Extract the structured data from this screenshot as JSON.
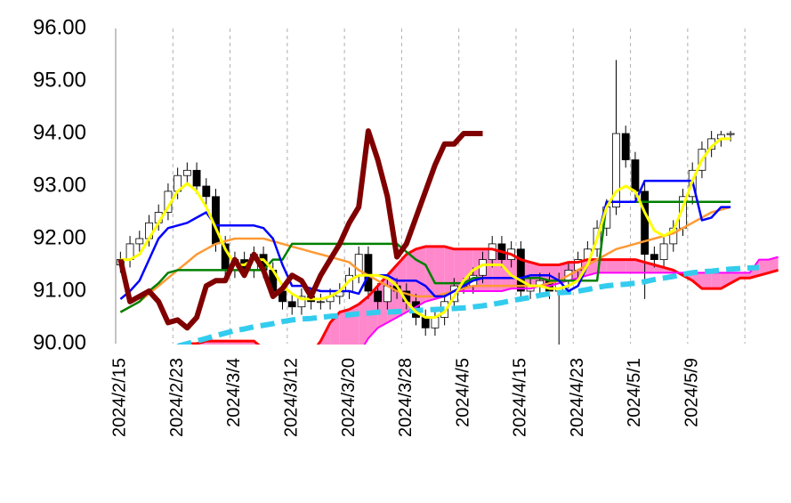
{
  "chart_data": {
    "type": "ichimoku",
    "categories": [
      "2024/2/15",
      null,
      null,
      null,
      null,
      null,
      "2024/2/23",
      null,
      null,
      null,
      null,
      null,
      "2024/3/4",
      null,
      null,
      null,
      null,
      null,
      "2024/3/12",
      null,
      null,
      null,
      null,
      null,
      "2024/3/20",
      null,
      null,
      null,
      null,
      null,
      "2024/3/28",
      null,
      null,
      null,
      null,
      null,
      "2024/4/5",
      null,
      null,
      null,
      null,
      null,
      "2024/4/15",
      null,
      null,
      null,
      null,
      null,
      "2024/4/23",
      null,
      null,
      null,
      null,
      null,
      "2024/5/1",
      null,
      null,
      null,
      null,
      null,
      "2024/5/9",
      null,
      null,
      null,
      null,
      null,
      null,
      null,
      null,
      null
    ],
    "ylim": [
      90,
      96
    ],
    "yticks": [
      {
        "value": 90,
        "label": "90.00"
      },
      {
        "value": 91,
        "label": "91.00"
      },
      {
        "value": 92,
        "label": "92.00"
      },
      {
        "value": 93,
        "label": "93.00"
      },
      {
        "value": 94,
        "label": "94.00"
      },
      {
        "value": 95,
        "label": "95.00"
      },
      {
        "value": 96,
        "label": "96.00"
      }
    ],
    "grid": true,
    "candles": {
      "up_color": "#ffffff",
      "down_color": "#000000",
      "open": [
        91.5,
        91.6,
        91.9,
        92.0,
        92.3,
        92.5,
        92.9,
        93.2,
        93.3,
        93.0,
        92.8,
        91.9,
        91.4,
        91.6,
        91.4,
        91.7,
        91.4,
        91.0,
        90.8,
        90.7,
        90.9,
        90.8,
        90.8,
        90.9,
        91.0,
        91.3,
        91.7,
        91.0,
        90.8,
        91.1,
        91.0,
        90.8,
        90.5,
        90.3,
        90.5,
        90.8,
        91.1,
        91.1,
        91.3,
        91.6,
        91.9,
        91.6,
        91.8,
        91.0,
        91.1,
        91.2,
        91.0,
        91.2,
        91.4,
        91.6,
        91.8,
        92.2,
        92.6,
        94.0,
        93.5,
        92.9,
        91.7,
        91.6,
        91.9,
        92.2,
        92.8,
        93.3,
        93.7,
        93.9,
        93.98,
        null,
        null,
        null,
        null,
        null
      ],
      "high": [
        91.75,
        92.05,
        92.15,
        92.45,
        92.65,
        93.05,
        93.35,
        93.45,
        93.45,
        93.15,
        92.95,
        92.05,
        91.75,
        91.75,
        91.85,
        91.85,
        91.55,
        91.15,
        90.95,
        91.05,
        91.05,
        90.95,
        91.05,
        91.15,
        91.45,
        91.85,
        91.85,
        91.15,
        91.25,
        91.25,
        91.15,
        90.95,
        90.65,
        90.65,
        90.95,
        91.25,
        91.25,
        91.45,
        91.75,
        92.05,
        92.05,
        91.95,
        91.95,
        91.25,
        91.35,
        91.35,
        91.35,
        91.55,
        91.75,
        91.95,
        92.35,
        92.75,
        95.4,
        94.15,
        93.65,
        93.05,
        91.85,
        92.05,
        92.35,
        92.95,
        93.45,
        93.85,
        94.05,
        94.05,
        94.05,
        null,
        null,
        null,
        null,
        null
      ],
      "low": [
        91.35,
        91.45,
        91.75,
        91.85,
        92.15,
        92.35,
        92.75,
        93.05,
        92.85,
        92.65,
        91.75,
        91.25,
        91.25,
        91.25,
        91.25,
        91.25,
        90.85,
        90.65,
        90.55,
        90.55,
        90.65,
        90.65,
        90.65,
        90.75,
        90.85,
        91.15,
        90.85,
        90.65,
        90.65,
        90.85,
        90.65,
        90.35,
        90.15,
        90.15,
        90.35,
        90.65,
        90.95,
        90.95,
        91.15,
        91.45,
        91.45,
        91.45,
        90.85,
        90.85,
        90.95,
        90.85,
        89.95,
        91.05,
        91.25,
        91.45,
        91.65,
        92.05,
        92.45,
        93.35,
        92.75,
        90.85,
        91.45,
        91.45,
        91.75,
        92.05,
        92.65,
        93.15,
        93.55,
        93.75,
        93.85,
        null,
        null,
        null,
        null,
        null
      ],
      "close": [
        91.6,
        91.9,
        92.0,
        92.3,
        92.5,
        92.9,
        93.2,
        93.3,
        93.0,
        92.8,
        91.9,
        91.4,
        91.6,
        91.4,
        91.7,
        91.4,
        91.0,
        90.8,
        90.7,
        90.9,
        90.8,
        90.8,
        90.9,
        91.0,
        91.3,
        91.7,
        91.0,
        90.8,
        91.1,
        91.0,
        90.8,
        90.5,
        90.3,
        90.5,
        90.8,
        91.1,
        91.1,
        91.3,
        91.6,
        91.9,
        91.6,
        91.8,
        91.0,
        91.1,
        91.2,
        91.0,
        91.2,
        91.4,
        91.6,
        91.8,
        92.2,
        92.6,
        94.0,
        93.5,
        92.9,
        91.7,
        91.6,
        91.9,
        92.2,
        92.8,
        93.3,
        93.7,
        93.9,
        93.98,
        94.0,
        null,
        null,
        null,
        null,
        null
      ]
    },
    "cloud_color": "#ff88cc",
    "series": [
      {
        "color": "#ff0000",
        "values": [
          89.6,
          89.65,
          89.7,
          89.8,
          89.85,
          89.9,
          89.95,
          90.0,
          90.0,
          90.05,
          90.05,
          90.05,
          90.05,
          90.05,
          90.05,
          89.9,
          89.7,
          89.6,
          89.5,
          89.6,
          89.8,
          90.05,
          90.4,
          90.6,
          90.65,
          90.75,
          90.9,
          91.1,
          91.3,
          91.5,
          91.7,
          91.8,
          91.85,
          91.85,
          91.85,
          91.8,
          91.8,
          91.8,
          91.8,
          91.8,
          91.75,
          91.7,
          91.6,
          91.55,
          91.5,
          91.5,
          91.5,
          91.55,
          91.55,
          91.6,
          91.6,
          91.6,
          91.6,
          91.6,
          91.6,
          91.55,
          91.5,
          91.45,
          91.4,
          91.3,
          91.2,
          91.05,
          91.05,
          91.05,
          91.15,
          91.25,
          91.25,
          91.3,
          91.35,
          91.4
        ]
      },
      {
        "color": "#ff00ff",
        "values": [
          89.5,
          89.5,
          89.5,
          89.5,
          89.5,
          89.5,
          89.5,
          89.5,
          89.5,
          89.5,
          89.5,
          89.5,
          89.5,
          89.5,
          89.5,
          89.5,
          89.5,
          89.5,
          89.5,
          89.5,
          89.5,
          89.5,
          89.5,
          89.5,
          89.5,
          89.8,
          90.1,
          90.3,
          90.4,
          90.5,
          90.6,
          90.7,
          90.8,
          90.85,
          90.9,
          91.0,
          91.0,
          91.0,
          91.0,
          91.0,
          91.0,
          91.05,
          91.05,
          91.05,
          91.1,
          91.1,
          91.15,
          91.2,
          91.25,
          91.3,
          91.35,
          91.35,
          91.35,
          91.35,
          91.35,
          91.35,
          91.35,
          91.35,
          91.35,
          91.35,
          91.35,
          91.35,
          91.35,
          91.35,
          91.35,
          91.35,
          91.35,
          91.6,
          91.6,
          91.65
        ]
      },
      {
        "color": "#33ccee",
        "values": [
          null,
          null,
          null,
          null,
          null,
          null,
          89.95,
          90.0,
          90.05,
          90.1,
          90.15,
          90.2,
          90.25,
          90.28,
          90.32,
          90.35,
          90.38,
          90.42,
          90.45,
          90.47,
          90.48,
          90.5,
          90.52,
          90.53,
          90.55,
          90.57,
          90.58,
          90.6,
          90.6,
          90.61,
          90.62,
          90.63,
          90.64,
          90.65,
          90.66,
          90.67,
          90.68,
          90.7,
          90.72,
          90.75,
          90.78,
          90.82,
          90.85,
          90.88,
          90.92,
          90.95,
          90.97,
          90.98,
          91.0,
          91.03,
          91.07,
          91.1,
          91.12,
          91.13,
          91.15,
          91.18,
          91.22,
          91.25,
          91.28,
          91.32,
          91.35,
          91.37,
          91.38,
          91.4,
          91.42,
          91.43,
          91.44,
          91.45,
          null,
          null
        ]
      },
      {
        "color": "#ff9933",
        "values": [
          90.6,
          90.7,
          90.8,
          90.95,
          91.1,
          91.25,
          91.4,
          91.55,
          91.7,
          91.8,
          91.9,
          91.95,
          92.0,
          92.0,
          92.0,
          92.0,
          91.95,
          91.9,
          91.85,
          91.8,
          91.75,
          91.7,
          91.65,
          91.6,
          91.55,
          91.4,
          91.3,
          91.2,
          91.1,
          91.0,
          90.95,
          90.9,
          90.9,
          90.9,
          90.95,
          91.0,
          91.05,
          91.1,
          91.1,
          91.1,
          91.1,
          91.1,
          91.1,
          91.1,
          91.1,
          91.15,
          91.2,
          91.3,
          91.4,
          91.5,
          91.6,
          91.7,
          91.8,
          91.85,
          91.9,
          91.95,
          92.0,
          92.05,
          92.1,
          92.2,
          92.3,
          92.4,
          92.5,
          92.55,
          92.6,
          null,
          null,
          null,
          null,
          null
        ]
      },
      {
        "color": "#008000",
        "values": [
          90.6,
          90.7,
          90.8,
          91.0,
          91.15,
          91.35,
          91.4,
          91.4,
          91.4,
          91.4,
          91.4,
          91.4,
          91.4,
          91.4,
          91.4,
          91.4,
          91.6,
          91.6,
          91.9,
          91.9,
          91.9,
          91.9,
          91.9,
          91.9,
          91.9,
          91.9,
          91.9,
          91.9,
          91.9,
          91.9,
          91.75,
          91.6,
          91.5,
          91.15,
          91.15,
          91.15,
          91.15,
          91.25,
          91.25,
          91.25,
          91.25,
          91.25,
          91.25,
          91.25,
          91.25,
          91.2,
          91.2,
          91.2,
          91.2,
          91.2,
          91.2,
          92.7,
          92.7,
          92.7,
          92.7,
          92.7,
          92.7,
          92.7,
          92.7,
          92.7,
          92.7,
          92.7,
          92.7,
          92.7,
          92.7,
          null,
          null,
          null,
          null,
          null
        ]
      },
      {
        "color": "#0000ff",
        "values": [
          90.85,
          91.0,
          91.2,
          91.6,
          92.0,
          92.2,
          92.25,
          92.3,
          92.4,
          92.5,
          92.25,
          92.25,
          92.25,
          92.25,
          92.25,
          92.2,
          92.0,
          91.5,
          91.1,
          91.1,
          91.05,
          91.0,
          91.0,
          91.0,
          91.0,
          90.95,
          91.3,
          91.3,
          91.3,
          91.2,
          91.2,
          91.2,
          91.1,
          90.9,
          90.9,
          91.0,
          91.1,
          91.2,
          91.25,
          91.25,
          91.25,
          91.25,
          91.25,
          91.3,
          91.3,
          91.3,
          91.2,
          91.0,
          91.1,
          91.5,
          92.0,
          92.7,
          92.7,
          92.7,
          92.7,
          93.1,
          93.1,
          93.1,
          93.1,
          93.1,
          93.1,
          92.35,
          92.4,
          92.6,
          92.6,
          null,
          null,
          null,
          null,
          null
        ]
      },
      {
        "color": "#ffff00",
        "values": [
          91.6,
          91.6,
          91.7,
          92.0,
          92.3,
          92.6,
          92.9,
          93.05,
          92.9,
          92.6,
          92.2,
          91.8,
          91.5,
          91.5,
          91.6,
          91.6,
          91.4,
          91.1,
          90.95,
          90.85,
          90.85,
          90.85,
          90.9,
          91.0,
          91.2,
          91.3,
          91.3,
          91.3,
          91.25,
          91.1,
          90.8,
          90.6,
          90.5,
          90.5,
          90.6,
          90.9,
          91.2,
          91.4,
          91.5,
          91.5,
          91.5,
          91.3,
          91.2,
          91.1,
          91.1,
          91.05,
          91.05,
          91.1,
          91.2,
          91.5,
          92.0,
          92.6,
          92.9,
          93.0,
          92.9,
          92.5,
          92.15,
          92.05,
          92.15,
          92.6,
          93.1,
          93.5,
          93.75,
          93.9,
          93.9,
          null,
          null,
          null,
          null,
          null
        ]
      },
      {
        "color": "#800000",
        "values": [
          91.6,
          90.8,
          90.9,
          91.0,
          90.8,
          90.4,
          90.45,
          90.3,
          90.5,
          91.1,
          91.2,
          91.2,
          91.6,
          91.3,
          91.7,
          91.4,
          90.9,
          91.05,
          91.3,
          91.2,
          90.9,
          91.3,
          91.6,
          91.9,
          92.3,
          92.6,
          94.05,
          93.5,
          92.8,
          91.65,
          91.9,
          92.4,
          92.9,
          93.4,
          93.8,
          93.8,
          94.0,
          94.0,
          94.0,
          null,
          null,
          null,
          null,
          null,
          null,
          null,
          null,
          null,
          null,
          null,
          null,
          null,
          null,
          null,
          null,
          null,
          null,
          null,
          null,
          null,
          null,
          null,
          null,
          null,
          null,
          null,
          null,
          null,
          null,
          null
        ]
      }
    ]
  }
}
